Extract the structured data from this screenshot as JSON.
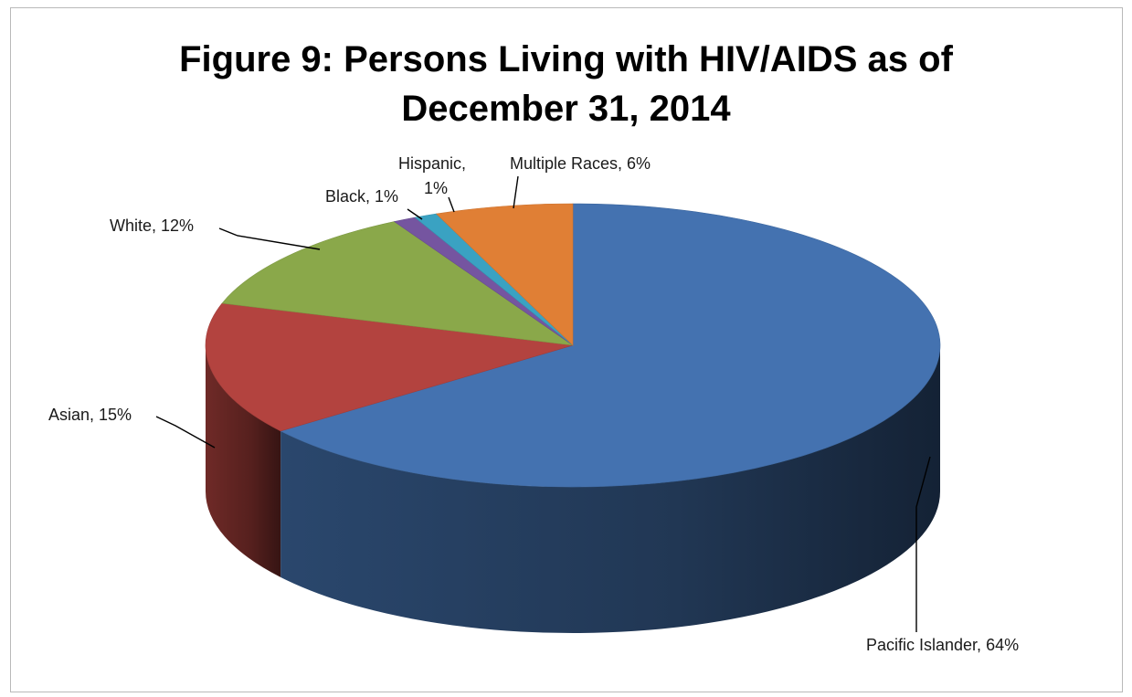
{
  "chart_data": {
    "type": "pie",
    "title_lines": [
      "Figure 9: Persons Living with HIV/AIDS as of",
      "December 31, 2014"
    ],
    "slices": [
      {
        "name": "Pacific Islander",
        "value": 64,
        "label": "Pacific Islander, 64%",
        "color": "#4472b0"
      },
      {
        "name": "Asian",
        "value": 15,
        "label": "Asian, 15%",
        "color": "#b3433f"
      },
      {
        "name": "White",
        "value": 12,
        "label": "White, 12%",
        "color": "#8aa84a"
      },
      {
        "name": "Black",
        "value": 1,
        "label": "Black, 1%",
        "color": "#7555a0"
      },
      {
        "name": "Hispanic",
        "value": 1,
        "label_lines": [
          "Hispanic,",
          "1%"
        ],
        "color": "#3aa2c2"
      },
      {
        "name": "Multiple Races",
        "value": 6,
        "label": "Multiple Races, 6%",
        "color": "#e07f35"
      }
    ],
    "style": "3d",
    "legend": "none"
  }
}
